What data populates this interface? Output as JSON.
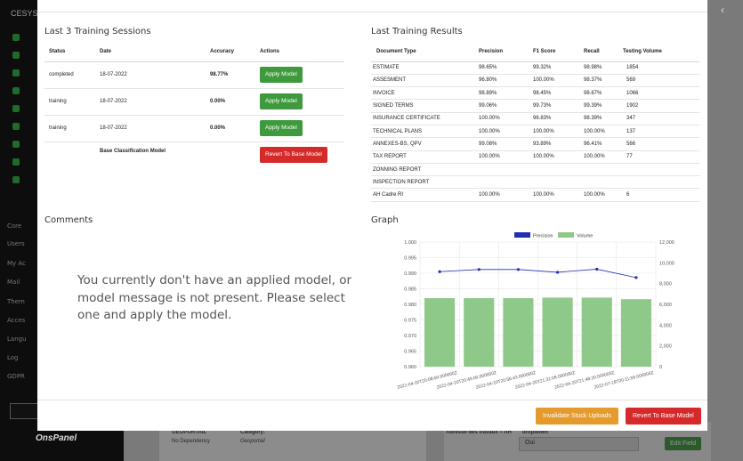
{
  "bg": {
    "brand": "CESYS",
    "sidebar_items": [
      "Core",
      "Users",
      "My Ac",
      "Mail",
      "Them",
      "Acces",
      "Langu",
      "Log",
      "GDPR"
    ],
    "logo": "OnsPanel",
    "card_title": "GEOPORTAIL",
    "card_dependency": "No Dependency",
    "card_category_label": "Category:",
    "card_category_value": "Geoportail",
    "field_label": "Adresse des travaux = AH",
    "field_type": "dropdown",
    "select_value": "Oui",
    "edit_button": "Edit Field"
  },
  "sessions": {
    "title": "Last 3 Training Sessions",
    "headers": [
      "Status",
      "Date",
      "Accuracy",
      "Actions"
    ],
    "rows": [
      {
        "status": "completed",
        "date": "18-07-2022",
        "accuracy": "98.77%",
        "action": "Apply Model"
      },
      {
        "status": "training",
        "date": "18-07-2022",
        "accuracy": "0.00%",
        "action": "Apply Model"
      },
      {
        "status": "training",
        "date": "18-07-2022",
        "accuracy": "0.00%",
        "action": "Apply Model"
      }
    ],
    "base_label": "Base Classification Model",
    "base_action": "Revert To Base Model"
  },
  "results": {
    "title": "Last Training Results",
    "headers": [
      "Document Type",
      "Precision",
      "F1 Score",
      "Recall",
      "Testing Volume"
    ],
    "rows": [
      [
        "ESTIMATE",
        "98.65%",
        "99.32%",
        "98.98%",
        "1854"
      ],
      [
        "ASSESMENT",
        "96.80%",
        "100.00%",
        "98.37%",
        "569"
      ],
      [
        "INVOICE",
        "98.89%",
        "98.45%",
        "98.67%",
        "1066"
      ],
      [
        "SIGNED TERMS",
        "99.06%",
        "99.73%",
        "99.39%",
        "1902"
      ],
      [
        "INSURANCE CERTIFICATE",
        "100.00%",
        "96.83%",
        "98.39%",
        "347"
      ],
      [
        "TECHNICAL PLANS",
        "100.00%",
        "100.00%",
        "100.00%",
        "137"
      ],
      [
        "ANNEXES-BS, QPV",
        "99.08%",
        "93.89%",
        "96.41%",
        "566"
      ],
      [
        "TAX REPORT",
        "100.00%",
        "100.00%",
        "100.00%",
        "77"
      ],
      [
        "ZONNING REPORT",
        "",
        "",
        "",
        ""
      ],
      [
        "INSPECTION REPORT",
        "",
        "",
        "",
        ""
      ],
      [
        "AH Cadre RI",
        "100.00%",
        "100.00%",
        "100.00%",
        "6"
      ]
    ]
  },
  "comments": {
    "title": "Comments",
    "message": "You currently don't have an applied model, or model message is not present. Please select one and apply the model."
  },
  "graph": {
    "title": "Graph"
  },
  "chart_data": {
    "type": "bar",
    "categories": [
      "2022-04-20T20:08:50.000000Z",
      "2022-04-20T20:49:00.000000Z",
      "2022-04-20T20:56:43.000000Z",
      "2022-04-20T21:31:08.000000Z",
      "2022-04-20T21:48:20.000000Z",
      "2022-07-18T00:11:55.000000Z"
    ],
    "series": [
      {
        "name": "Precision",
        "type": "line",
        "axis": "left",
        "color": "#1f2fb0",
        "values": [
          0.9905,
          0.9912,
          0.9912,
          0.9903,
          0.9913,
          0.9886
        ]
      },
      {
        "name": "Volume",
        "type": "bar",
        "axis": "right",
        "color": "#8fc98a",
        "values": [
          6600,
          6600,
          6600,
          6650,
          6650,
          6500
        ]
      }
    ],
    "y_left": {
      "min": 0.96,
      "max": 1.0,
      "ticks": [
        "1.000",
        "0.995",
        "0.990",
        "0.985",
        "0.980",
        "0.975",
        "0.970",
        "0.965",
        "0.960"
      ]
    },
    "y_right": {
      "min": 0,
      "max": 12000,
      "ticks": [
        "12,000",
        "10,000",
        "8,000",
        "6,000",
        "4,000",
        "2,000",
        "0"
      ]
    },
    "legend": "top",
    "grid": true
  },
  "footer": {
    "invalidate_label": "Invalidate Stuck Uploads",
    "revert_label": "Revert To Base Model"
  },
  "colors": {
    "green": "#3e9a3c",
    "red": "#d62a2a",
    "orange": "#e59a2d"
  }
}
